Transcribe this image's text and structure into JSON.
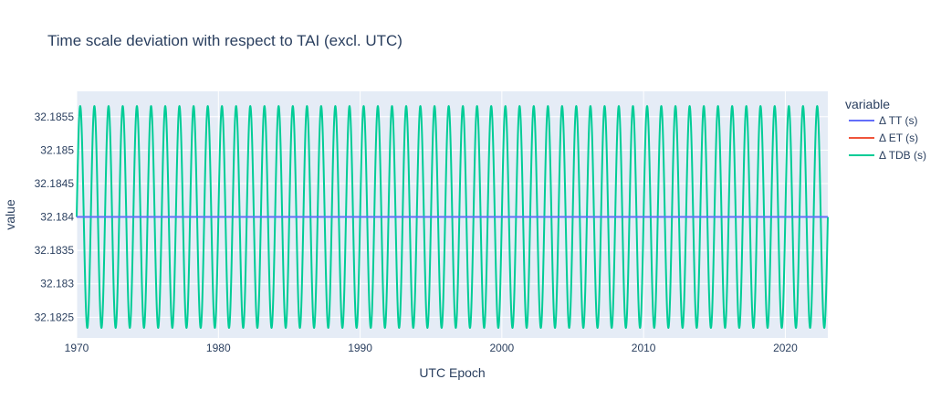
{
  "chart_data": {
    "type": "line",
    "title": "Time scale deviation with respect to TAI (excl. UTC)",
    "xlabel": "UTC Epoch",
    "ylabel": "value",
    "xlim": [
      1970,
      2023
    ],
    "ylim": [
      32.18219,
      32.18588
    ],
    "x_ticks": [
      1970,
      1980,
      1990,
      2000,
      2010,
      2020
    ],
    "x_tick_labels": [
      "1970",
      "1980",
      "1990",
      "2000",
      "2010",
      "2020"
    ],
    "y_ticks": [
      32.1825,
      32.183,
      32.1835,
      32.184,
      32.1845,
      32.185,
      32.1855
    ],
    "y_tick_labels": [
      "32.1825",
      "32.183",
      "32.1835",
      "32.184",
      "32.1845",
      "32.185",
      "32.1855"
    ],
    "grid": true,
    "legend": {
      "title": "variable",
      "placement": "right"
    },
    "series": [
      {
        "name": "Δ TT (s)",
        "color": "#636efa",
        "kind": "constant",
        "value": 32.184
      },
      {
        "name": "Δ ET (s)",
        "color": "#ef553b",
        "kind": "constant",
        "value": 32.184
      },
      {
        "name": "Δ TDB (s)",
        "color": "#00cc96",
        "kind": "periodic",
        "offset": 32.184,
        "amplitude": 0.00166,
        "period_years": 1.0,
        "phase_years": 0.25,
        "x_start": 1970.0,
        "x_end": 2023.0
      }
    ]
  }
}
